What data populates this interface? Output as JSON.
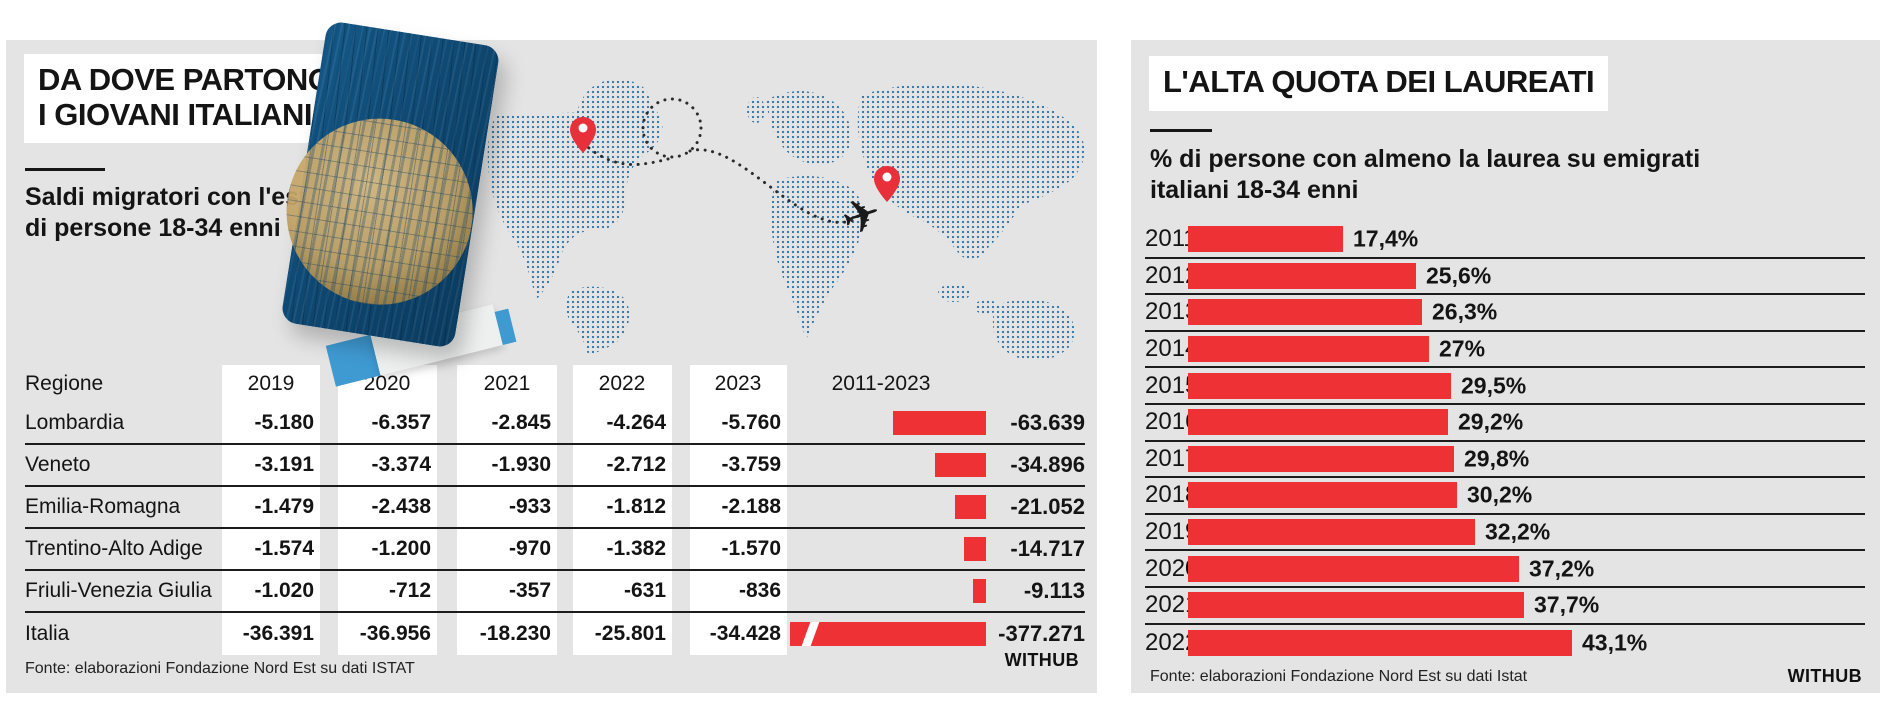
{
  "colors": {
    "panel_bg": "#e4e4e4",
    "bar_red": "#ee3134",
    "map_blue": "#2e74a8",
    "passport_navy": "#0d456e",
    "accent_blue": "#3f9ad2"
  },
  "left_panel": {
    "title": [
      "DA DOVE PARTONO",
      "I GIOVANI ITALIANI"
    ],
    "subtitle": [
      "Saldi migratori con l'estero",
      "di persone 18-34 enni"
    ],
    "source": "Fonte: elaborazioni Fondazione Nord Est su dati ISTAT",
    "logo": "WITHUB",
    "decor_icons": [
      "passport-icon",
      "globe-icon",
      "dotted-world-map",
      "plane-icon",
      "location-pin-icon"
    ]
  },
  "right_panel": {
    "title": "L'ALTA QUOTA DEI LAUREATI",
    "subtitle": [
      "% di persone con almeno la laurea su emigrati",
      "italiani 18-34 enni"
    ],
    "source": "Fonte: elaborazioni Fondazione Nord Est su dati Istat",
    "logo": "WITHUB"
  },
  "chart_data": [
    {
      "type": "table",
      "title": "Saldi migratori con l'estero di persone 18-34 enni",
      "columns": [
        "Regione",
        "2019",
        "2020",
        "2021",
        "2022",
        "2023",
        "2011-2023"
      ],
      "bar_column": "2011-2023",
      "bar_color": "#ee3134",
      "rows": [
        {
          "region": "Lombardia",
          "values": [
            "-5.180",
            "-6.357",
            "-2.845",
            "-4.264",
            "-5.760"
          ],
          "total": "-63.639",
          "total_value": -63639,
          "broken": false
        },
        {
          "region": "Veneto",
          "values": [
            "-3.191",
            "-3.374",
            "-1.930",
            "-2.712",
            "-3.759"
          ],
          "total": "-34.896",
          "total_value": -34896,
          "broken": false
        },
        {
          "region": "Emilia-Romagna",
          "values": [
            "-1.479",
            "-2.438",
            "-933",
            "-1.812",
            "-2.188"
          ],
          "total": "-21.052",
          "total_value": -21052,
          "broken": false
        },
        {
          "region": "Trentino-Alto Adige",
          "values": [
            "-1.574",
            "-1.200",
            "-970",
            "-1.382",
            "-1.570"
          ],
          "total": "-14.717",
          "total_value": -14717,
          "broken": false
        },
        {
          "region": "Friuli-Venezia Giulia",
          "values": [
            "-1.020",
            "-712",
            "-357",
            "-631",
            "-836"
          ],
          "total": "-9.113",
          "total_value": -9113,
          "broken": false
        },
        {
          "region": "Italia",
          "values": [
            "-36.391",
            "-36.956",
            "-18.230",
            "-25.801",
            "-34.428"
          ],
          "total": "-377.271",
          "total_value": -377271,
          "broken": true
        }
      ]
    },
    {
      "type": "bar",
      "orientation": "horizontal",
      "title": "% di persone con almeno la laurea su emigrati italiani 18-34 enni",
      "categories": [
        "2011",
        "2012",
        "2013",
        "2014",
        "2015",
        "2016",
        "2017",
        "2018",
        "2019",
        "2020",
        "2021",
        "2022"
      ],
      "values": [
        17.4,
        25.6,
        26.3,
        27,
        29.5,
        29.2,
        29.8,
        30.2,
        32.2,
        37.2,
        37.7,
        43.1
      ],
      "labels": [
        "17,4%",
        "25,6%",
        "26,3%",
        "27%",
        "29,5%",
        "29,2%",
        "29,8%",
        "30,2%",
        "32,2%",
        "37,2%",
        "37,7%",
        "43,1%"
      ],
      "xlim": [
        0,
        45
      ],
      "grid": false,
      "legend": "none",
      "bar_color": "#ee3134"
    }
  ]
}
